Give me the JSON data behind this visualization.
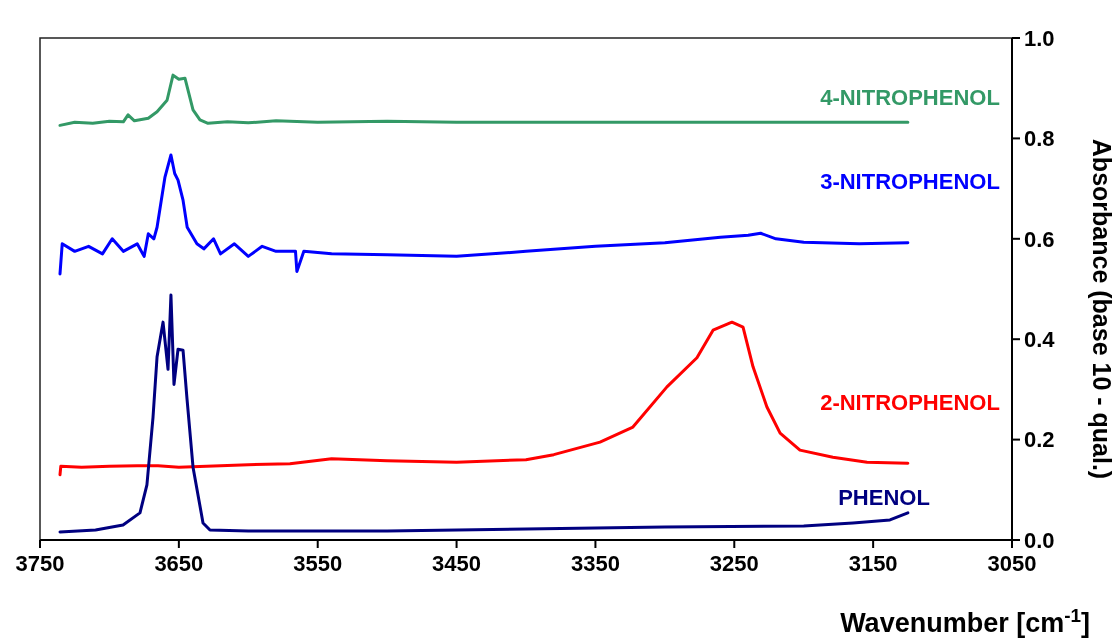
{
  "chart_data": {
    "type": "line",
    "xlabel": "Wavenumber [cm$^{-1}$]",
    "ylabel": "Absorbance (base 10 - qual.)",
    "xlim": [
      3750,
      3050
    ],
    "xticks": [
      3750,
      3650,
      3550,
      3450,
      3350,
      3250,
      3150,
      3050
    ],
    "ylim": [
      0,
      1
    ],
    "yticks": [
      {
        "value": 0,
        "label": "0.0"
      },
      {
        "value": 0.2,
        "label": "0.2"
      },
      {
        "value": 0.4,
        "label": "0.4"
      },
      {
        "value": 0.6,
        "label": "0.6"
      },
      {
        "value": 0.8,
        "label": "0.8"
      },
      {
        "value": 1,
        "label": "1.0"
      }
    ],
    "grid": false,
    "legend": false,
    "marker": "none",
    "line_style": "solid",
    "series": [
      {
        "name": "4-NITROPHENOL",
        "color": "#339966",
        "x": [
          3735.6,
          3725,
          3712,
          3700,
          3690,
          3686.6,
          3682,
          3672,
          3665.7,
          3658.5,
          3654.2,
          3650,
          3645.6,
          3639.8,
          3634.8,
          3629,
          3615,
          3600,
          3580,
          3550,
          3500,
          3450,
          3350,
          3250,
          3125
        ],
        "values": [
          0.826,
          0.832,
          0.83,
          0.834,
          0.833,
          0.847,
          0.835,
          0.84,
          0.853,
          0.876,
          0.926,
          0.918,
          0.92,
          0.857,
          0.837,
          0.83,
          0.833,
          0.831,
          0.835,
          0.832,
          0.834,
          0.832,
          0.832,
          0.832,
          0.832
        ]
      },
      {
        "name": "3-NITROPHENOL",
        "color": "#0000ff",
        "x": [
          3735.6,
          3734,
          3725,
          3715,
          3705,
          3698,
          3690,
          3680,
          3675,
          3672,
          3668,
          3665.7,
          3660,
          3655.7,
          3653,
          3650.6,
          3647,
          3644,
          3637,
          3632,
          3625,
          3620,
          3610,
          3600,
          3590,
          3580,
          3566,
          3565,
          3560,
          3540,
          3500,
          3450,
          3400,
          3350,
          3300,
          3260,
          3240,
          3231,
          3220,
          3200,
          3160,
          3125
        ],
        "values": [
          0.53,
          0.59,
          0.575,
          0.585,
          0.57,
          0.6,
          0.575,
          0.59,
          0.565,
          0.61,
          0.6,
          0.623,
          0.723,
          0.767,
          0.73,
          0.717,
          0.677,
          0.623,
          0.59,
          0.58,
          0.6,
          0.57,
          0.59,
          0.565,
          0.585,
          0.575,
          0.575,
          0.535,
          0.575,
          0.57,
          0.568,
          0.565,
          0.575,
          0.585,
          0.592,
          0.603,
          0.607,
          0.611,
          0.6,
          0.593,
          0.59,
          0.592
        ]
      },
      {
        "name": "2-NITROPHENOL",
        "color": "#ff0000",
        "x": [
          3735.6,
          3735,
          3720,
          3700,
          3680,
          3665,
          3650,
          3620,
          3600,
          3570,
          3540,
          3500,
          3450,
          3400,
          3380,
          3346.7,
          3323,
          3298.5,
          3276.9,
          3265.3,
          3251.7,
          3243.7,
          3236.5,
          3226.5,
          3217,
          3202.7,
          3179,
          3154.4,
          3125
        ],
        "values": [
          0.13,
          0.147,
          0.145,
          0.147,
          0.148,
          0.148,
          0.145,
          0.148,
          0.15,
          0.152,
          0.162,
          0.158,
          0.155,
          0.16,
          0.17,
          0.195,
          0.225,
          0.305,
          0.363,
          0.418,
          0.434,
          0.424,
          0.345,
          0.265,
          0.213,
          0.179,
          0.165,
          0.155,
          0.153
        ]
      },
      {
        "name": "PHENOL",
        "color": "#000080",
        "x": [
          3735.6,
          3710,
          3690.2,
          3678,
          3673,
          3668.6,
          3665.7,
          3661.4,
          3657.8,
          3655.7,
          3653.5,
          3650.6,
          3647,
          3644.1,
          3639.8,
          3632.6,
          3627.6,
          3600,
          3500,
          3400,
          3300,
          3200,
          3164.5,
          3137.9,
          3125
        ],
        "values": [
          0.016,
          0.02,
          0.03,
          0.054,
          0.11,
          0.245,
          0.365,
          0.434,
          0.34,
          0.488,
          0.31,
          0.38,
          0.378,
          0.28,
          0.145,
          0.034,
          0.02,
          0.018,
          0.018,
          0.022,
          0.026,
          0.028,
          0.034,
          0.04,
          0.054
        ]
      }
    ]
  }
}
